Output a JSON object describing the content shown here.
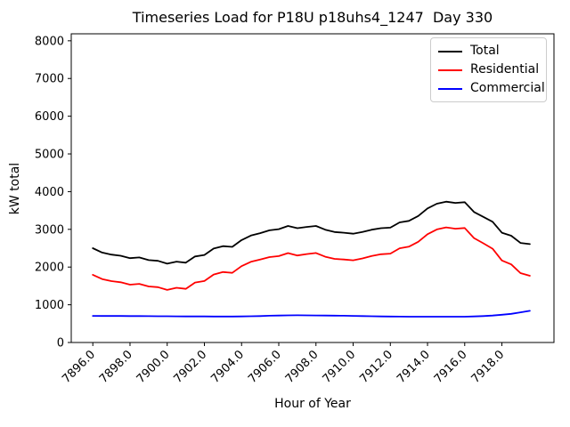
{
  "figure": {
    "background": "#ffffff",
    "text_color": "#000000",
    "spine_color": "#000000"
  },
  "chart_data": {
    "type": "line",
    "title": "Timeseries Load for P18U p18uhs4_1247  Day 330",
    "xlabel": "Hour of Year",
    "ylabel": "kW total",
    "grid": false,
    "legend_position": "upper right",
    "legend_border_color": "#cccccc",
    "xlim": [
      7894.84,
      7920.8
    ],
    "ylim": [
      0,
      8185
    ],
    "x_ticks": {
      "values": [
        7896,
        7898,
        7900,
        7902,
        7904,
        7906,
        7908,
        7910,
        7912,
        7914,
        7916,
        7918
      ],
      "labels": [
        "7896.0",
        "7898.0",
        "7900.0",
        "7902.0",
        "7904.0",
        "7906.0",
        "7908.0",
        "7910.0",
        "7912.0",
        "7914.0",
        "7916.0",
        "7918.0"
      ],
      "rotation_deg": 45
    },
    "y_ticks": {
      "values": [
        0,
        1000,
        2000,
        3000,
        4000,
        5000,
        6000,
        7000,
        8000
      ],
      "labels": [
        "0",
        "1000",
        "2000",
        "3000",
        "4000",
        "5000",
        "6000",
        "7000",
        "8000"
      ]
    },
    "x": [
      7896.0,
      7896.5,
      7897.0,
      7897.5,
      7898.0,
      7898.5,
      7899.0,
      7899.5,
      7900.0,
      7900.5,
      7901.0,
      7901.5,
      7902.0,
      7902.5,
      7903.0,
      7903.5,
      7904.0,
      7904.5,
      7905.0,
      7905.5,
      7906.0,
      7906.5,
      7907.0,
      7907.5,
      7908.0,
      7908.5,
      7909.0,
      7909.5,
      7910.0,
      7910.5,
      7911.0,
      7911.5,
      7912.0,
      7912.5,
      7913.0,
      7913.5,
      7914.0,
      7914.5,
      7915.0,
      7915.5,
      7916.0,
      7916.5,
      7917.0,
      7917.5,
      7918.0,
      7918.5,
      7919.0,
      7919.5
    ],
    "series": [
      {
        "name": "Total",
        "color": "#000000",
        "values": [
          2500,
          2385,
          2330,
          2300,
          2235,
          2255,
          2185,
          2165,
          2090,
          2145,
          2115,
          2280,
          2320,
          2490,
          2555,
          2535,
          2715,
          2835,
          2900,
          2975,
          3005,
          3090,
          3030,
          3065,
          3090,
          2990,
          2930,
          2910,
          2885,
          2930,
          2990,
          3030,
          3045,
          3185,
          3225,
          3355,
          3555,
          3680,
          3735,
          3700,
          3720,
          3460,
          3330,
          3200,
          2910,
          2830,
          2640,
          2610
        ]
      },
      {
        "name": "Residential",
        "color": "#ff0000",
        "values": [
          1795,
          1681,
          1627,
          1598,
          1534,
          1555,
          1487,
          1468,
          1395,
          1451,
          1423,
          1589,
          1630,
          1801,
          1867,
          1847,
          2025,
          2140,
          2200,
          2265,
          2290,
          2370,
          2308,
          2345,
          2372,
          2275,
          2218,
          2200,
          2180,
          2230,
          2295,
          2340,
          2357,
          2499,
          2540,
          2671,
          2871,
          2997,
          3052,
          3016,
          3035,
          2770,
          2630,
          2485,
          2175,
          2070,
          1840,
          1770
        ]
      },
      {
        "name": "Commercial",
        "color": "#0000ff",
        "values": [
          705,
          704,
          703,
          702,
          701,
          700,
          698,
          697,
          695,
          694,
          692,
          691,
          690,
          689,
          688,
          688,
          690,
          695,
          700,
          710,
          715,
          720,
          722,
          720,
          718,
          715,
          712,
          710,
          705,
          700,
          695,
          690,
          688,
          686,
          685,
          684,
          684,
          683,
          683,
          684,
          685,
          690,
          700,
          715,
          735,
          760,
          800,
          840
        ]
      }
    ]
  }
}
